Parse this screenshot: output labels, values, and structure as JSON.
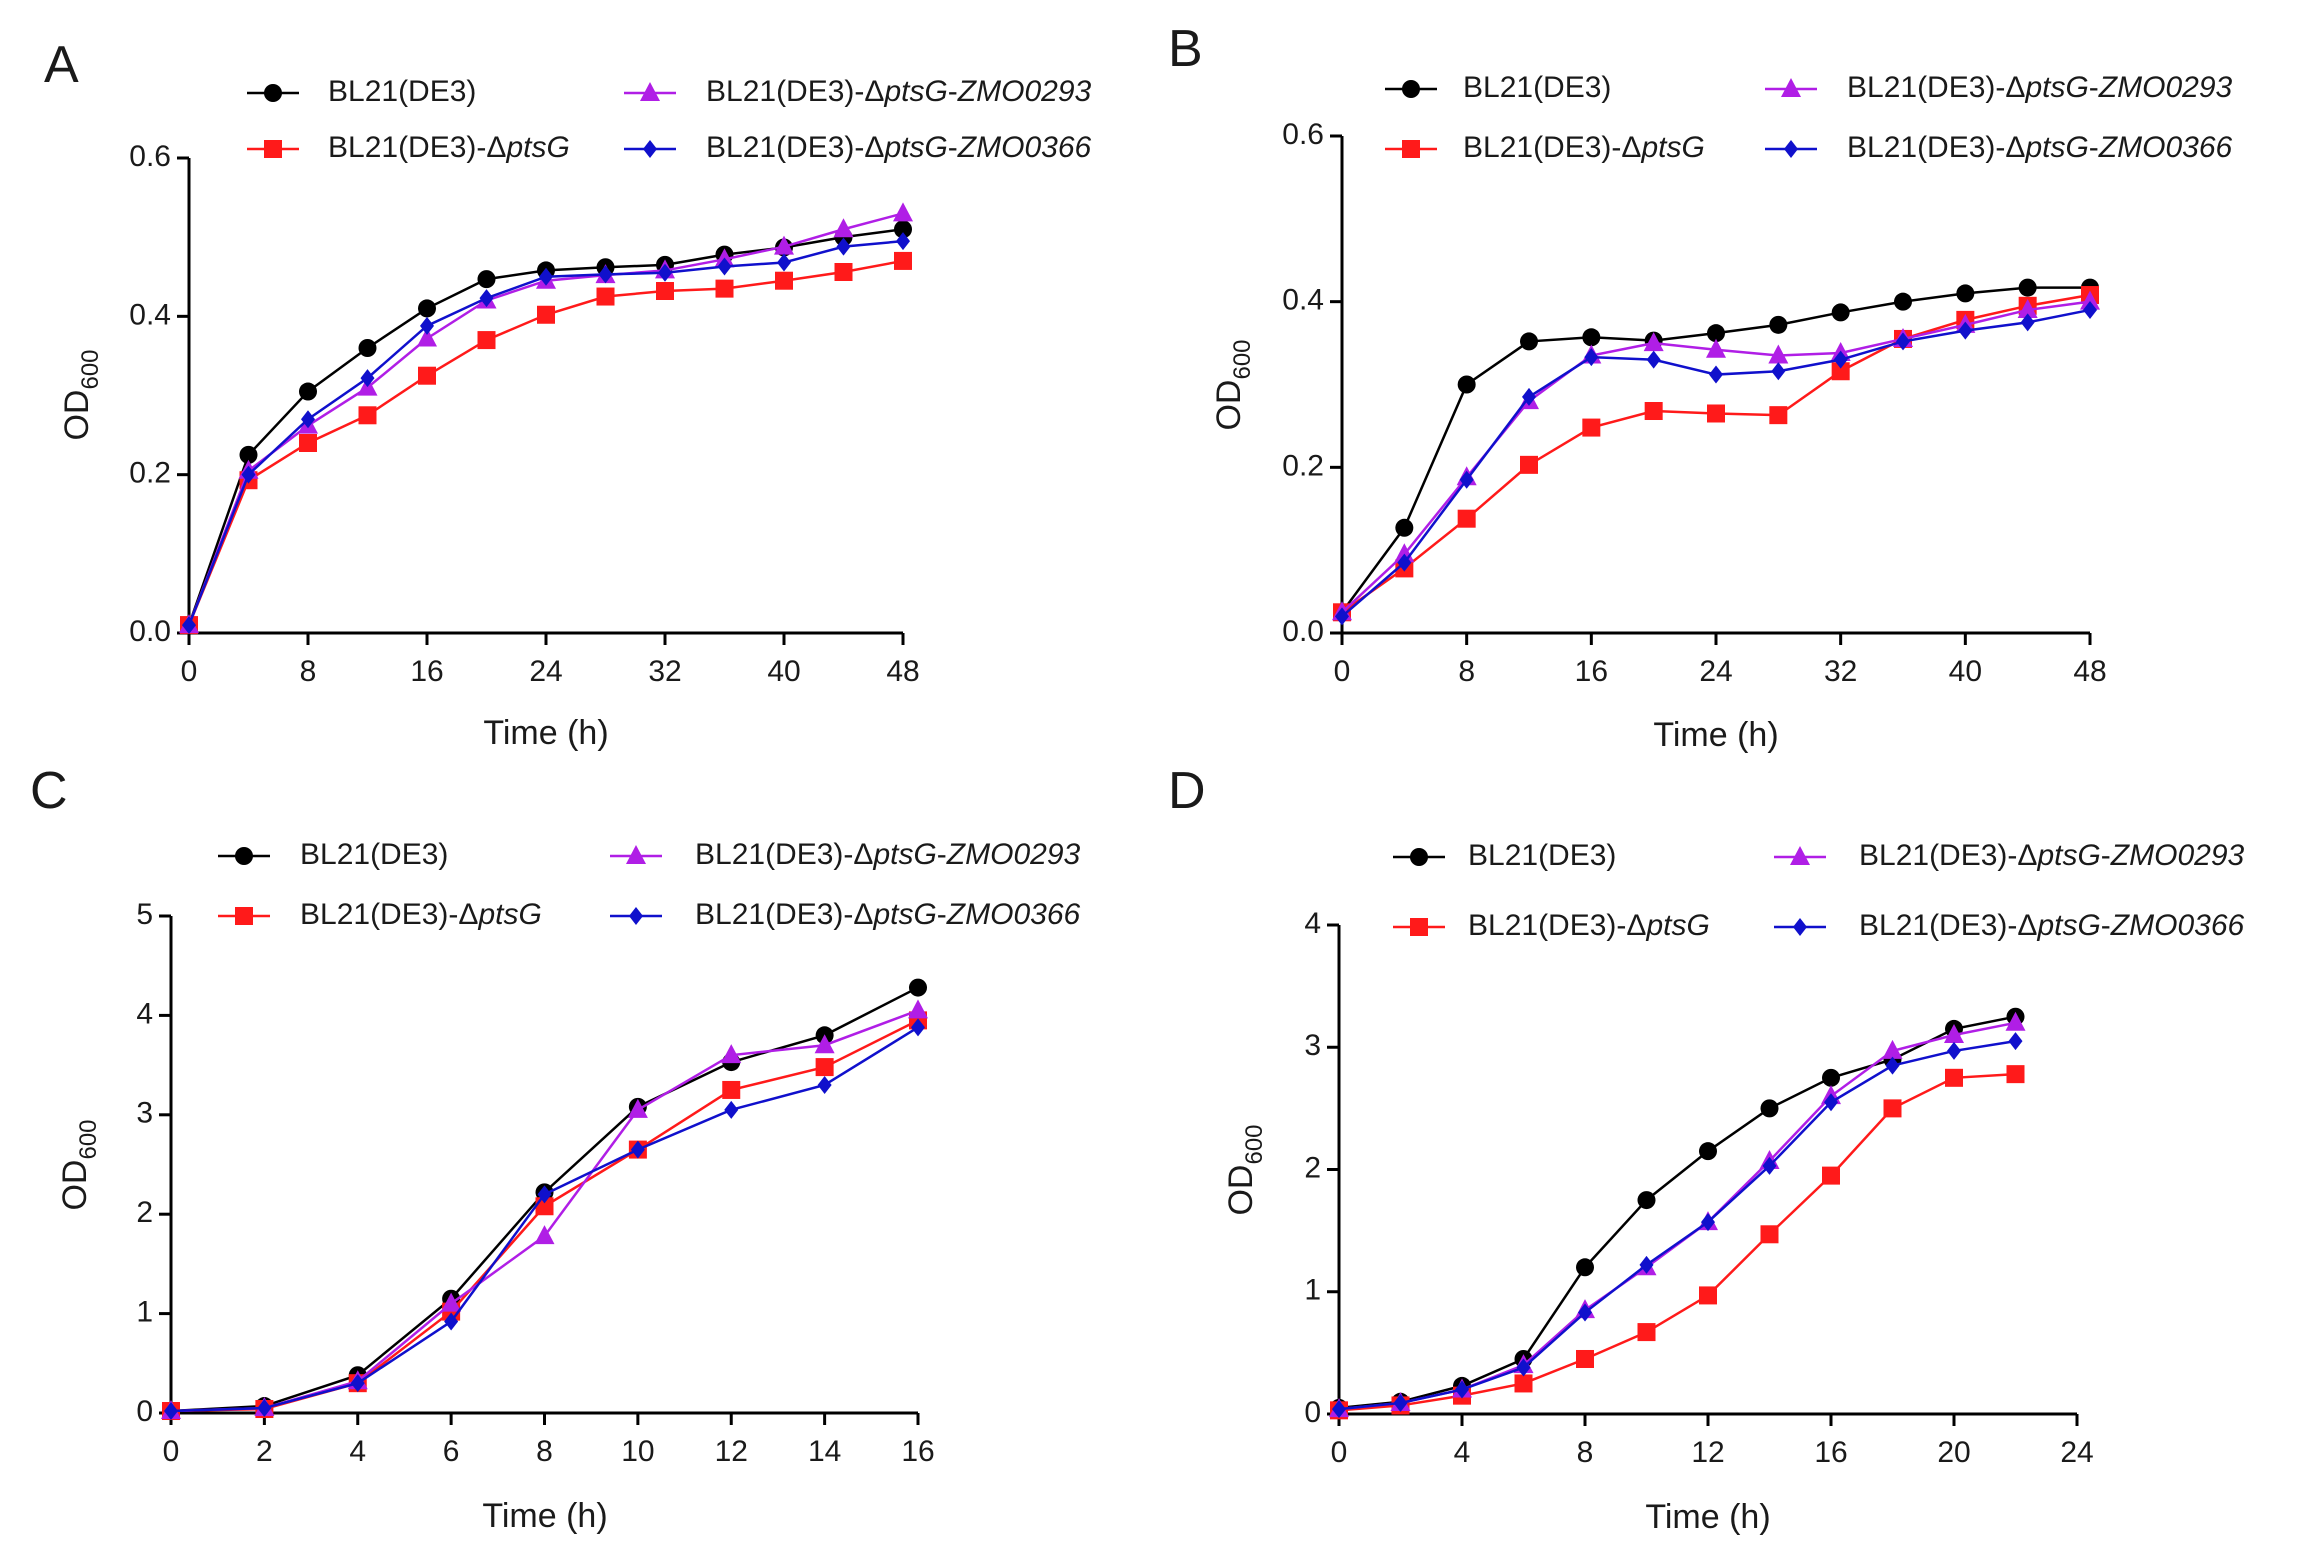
{
  "colors": {
    "black": "#000000",
    "red": "#ff1a1a",
    "purple": "#b01ee6",
    "blue": "#1010cc"
  },
  "chart_data": [
    {
      "panel": "A",
      "type": "line",
      "xlabel": "Time (h)",
      "ylabel": "OD",
      "ylabel_sub": "600",
      "xlim": [
        0,
        48
      ],
      "ylim": [
        0,
        0.6
      ],
      "xticks": [
        0,
        8,
        16,
        24,
        32,
        40,
        48
      ],
      "yticks": [
        "0.0",
        "0.2",
        "0.4",
        "0.6"
      ],
      "x": [
        0,
        4,
        8,
        12,
        16,
        20,
        24,
        28,
        32,
        36,
        40,
        44,
        48
      ],
      "series": [
        {
          "name": "BL21(DE3)",
          "color": "black",
          "marker": "circle",
          "values": [
            0.01,
            0.225,
            0.305,
            0.36,
            0.41,
            0.447,
            0.458,
            0.462,
            0.465,
            0.478,
            0.487,
            0.5,
            0.51
          ]
        },
        {
          "name": "BL21(DE3)-ΔptsG",
          "color": "red",
          "marker": "square",
          "values": [
            0.01,
            0.193,
            0.24,
            0.275,
            0.325,
            0.37,
            0.402,
            0.425,
            0.432,
            0.435,
            0.445,
            0.456,
            0.47
          ]
        },
        {
          "name": "BL21(DE3)-ΔptsG-ZMO0293",
          "color": "purple",
          "marker": "triangle",
          "values": [
            0.01,
            0.205,
            0.262,
            0.31,
            0.372,
            0.42,
            0.445,
            0.452,
            0.458,
            0.472,
            0.488,
            0.51,
            0.53
          ]
        },
        {
          "name": "BL21(DE3)-ΔptsG-ZMO0366",
          "color": "blue",
          "marker": "diamond",
          "values": [
            0.01,
            0.2,
            0.27,
            0.322,
            0.388,
            0.423,
            0.45,
            0.453,
            0.455,
            0.463,
            0.468,
            0.488,
            0.495
          ]
        }
      ]
    },
    {
      "panel": "B",
      "type": "line",
      "xlabel": "Time (h)",
      "ylabel": "OD",
      "ylabel_sub": "600",
      "xlim": [
        0,
        48
      ],
      "ylim": [
        0,
        0.6
      ],
      "xticks": [
        0,
        8,
        16,
        24,
        32,
        40,
        48
      ],
      "yticks": [
        "0.0",
        "0.2",
        "0.4",
        "0.6"
      ],
      "x": [
        0,
        4,
        8,
        12,
        16,
        20,
        24,
        28,
        32,
        36,
        40,
        44,
        48
      ],
      "series": [
        {
          "name": "BL21(DE3)",
          "color": "black",
          "marker": "circle",
          "values": [
            0.025,
            0.127,
            0.3,
            0.352,
            0.357,
            0.353,
            0.362,
            0.372,
            0.387,
            0.4,
            0.41,
            0.417,
            0.417
          ]
        },
        {
          "name": "BL21(DE3)-ΔptsG",
          "color": "red",
          "marker": "square",
          "values": [
            0.025,
            0.078,
            0.138,
            0.203,
            0.248,
            0.268,
            0.265,
            0.263,
            0.316,
            0.355,
            0.378,
            0.395,
            0.408
          ]
        },
        {
          "name": "BL21(DE3)-ΔptsG-ZMO0293",
          "color": "purple",
          "marker": "triangle",
          "values": [
            0.025,
            0.095,
            0.188,
            0.28,
            0.335,
            0.35,
            0.342,
            0.335,
            0.338,
            0.355,
            0.372,
            0.39,
            0.4
          ]
        },
        {
          "name": "BL21(DE3)-ΔptsG-ZMO0366",
          "color": "blue",
          "marker": "diamond",
          "values": [
            0.02,
            0.085,
            0.185,
            0.285,
            0.333,
            0.33,
            0.312,
            0.316,
            0.33,
            0.352,
            0.365,
            0.375,
            0.39
          ]
        }
      ]
    },
    {
      "panel": "C",
      "type": "line",
      "xlabel": "Time (h)",
      "ylabel": "OD",
      "ylabel_sub": "600",
      "xlim": [
        0,
        16
      ],
      "ylim": [
        0,
        5
      ],
      "xticks": [
        0,
        2,
        4,
        6,
        8,
        10,
        12,
        14,
        16
      ],
      "yticks": [
        "0",
        "1",
        "2",
        "3",
        "4",
        "5"
      ],
      "x": [
        0,
        2,
        4,
        6,
        8,
        10,
        12,
        14,
        16
      ],
      "series": [
        {
          "name": "BL21(DE3)",
          "color": "black",
          "marker": "circle",
          "values": [
            0.02,
            0.07,
            0.38,
            1.15,
            2.22,
            3.08,
            3.53,
            3.8,
            4.28
          ]
        },
        {
          "name": "BL21(DE3)-ΔptsG",
          "color": "red",
          "marker": "square",
          "values": [
            0.02,
            0.04,
            0.3,
            1.02,
            2.08,
            2.65,
            3.25,
            3.48,
            3.95
          ]
        },
        {
          "name": "BL21(DE3)-ΔptsG-ZMO0293",
          "color": "purple",
          "marker": "triangle",
          "values": [
            0.02,
            0.05,
            0.32,
            1.1,
            1.78,
            3.05,
            3.6,
            3.7,
            4.05
          ]
        },
        {
          "name": "BL21(DE3)-ΔptsG-ZMO0366",
          "color": "blue",
          "marker": "diamond",
          "values": [
            0.02,
            0.05,
            0.3,
            0.92,
            2.2,
            2.65,
            3.05,
            3.3,
            3.88
          ]
        }
      ]
    },
    {
      "panel": "D",
      "type": "line",
      "xlabel": "Time (h)",
      "ylabel": "OD",
      "ylabel_sub": "600",
      "xlim": [
        0,
        24
      ],
      "ylim": [
        0,
        4
      ],
      "xticks": [
        0,
        4,
        8,
        12,
        16,
        20,
        24
      ],
      "yticks": [
        "0",
        "1",
        "2",
        "3",
        "4"
      ],
      "x": [
        0,
        2,
        4,
        6,
        8,
        10,
        12,
        14,
        16,
        18,
        20,
        22
      ],
      "series": [
        {
          "name": "BL21(DE3)",
          "color": "black",
          "marker": "circle",
          "values": [
            0.05,
            0.1,
            0.23,
            0.45,
            1.2,
            1.75,
            2.15,
            2.5,
            2.75,
            2.9,
            3.15,
            3.25
          ]
        },
        {
          "name": "BL21(DE3)-ΔptsG",
          "color": "red",
          "marker": "square",
          "values": [
            0.03,
            0.07,
            0.15,
            0.25,
            0.45,
            0.67,
            0.97,
            1.47,
            1.95,
            2.5,
            2.75,
            2.78
          ]
        },
        {
          "name": "BL21(DE3)-ΔptsG-ZMO0293",
          "color": "purple",
          "marker": "triangle",
          "values": [
            0.04,
            0.09,
            0.2,
            0.4,
            0.85,
            1.2,
            1.57,
            2.07,
            2.6,
            2.97,
            3.1,
            3.2
          ]
        },
        {
          "name": "BL21(DE3)-ΔptsG-ZMO0366",
          "color": "blue",
          "marker": "diamond",
          "values": [
            0.04,
            0.09,
            0.2,
            0.38,
            0.83,
            1.22,
            1.57,
            2.03,
            2.55,
            2.85,
            2.97,
            3.05
          ]
        }
      ]
    }
  ]
}
